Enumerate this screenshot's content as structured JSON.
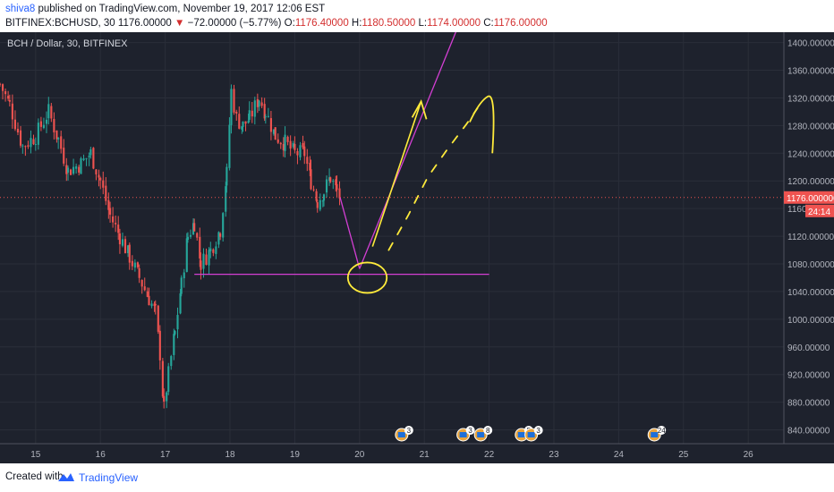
{
  "header": {
    "author": "shiva8",
    "published": "published on TradingView.com, November 19, 2017 12:06 EST",
    "symbol": "BITFINEX:BCHUSD, 30",
    "last": "1176.00000",
    "arrow": "▼",
    "change": "−72.00000 (−5.77%)",
    "o_label": "O:",
    "o_val": "1176.40000",
    "h_label": "H:",
    "h_val": "1180.50000",
    "l_label": "L:",
    "l_val": "1174.00000",
    "c_label": "C:",
    "c_val": "1176.00000"
  },
  "footer": {
    "created_with": "Created with",
    "brand": "TradingView"
  },
  "chart_data": {
    "type": "candlestick",
    "title": "BCH / Dollar, 30, BITFINEX",
    "x_ticks": [
      "15",
      "16",
      "17",
      "18",
      "19",
      "20",
      "21",
      "22",
      "23",
      "24",
      "25",
      "26"
    ],
    "y_ticks": [
      840,
      880,
      920,
      960,
      1000,
      1040,
      1080,
      1120,
      1160,
      1200,
      1240,
      1280,
      1320,
      1360,
      1400
    ],
    "ylim": [
      820,
      1415
    ],
    "xlim": [
      14.45,
      26.55
    ],
    "price_labels": [
      "840.00000",
      "880.00000",
      "920.00000",
      "960.00000",
      "1000.00000",
      "1040.00000",
      "1080.00000",
      "1120.00000",
      "1160",
      "1200.00000",
      "1240.00000",
      "1280.00000",
      "1320.00000",
      "1360.00000",
      "1400.00000"
    ],
    "last_price": 1176,
    "last_price_label": "1176.000000",
    "countdown": "24:14",
    "key_path": [
      [
        14.45,
        1340
      ],
      [
        14.6,
        1310
      ],
      [
        14.8,
        1250
      ],
      [
        15.0,
        1265
      ],
      [
        15.2,
        1300
      ],
      [
        15.35,
        1260
      ],
      [
        15.5,
        1215
      ],
      [
        15.7,
        1225
      ],
      [
        15.85,
        1240
      ],
      [
        16.0,
        1200
      ],
      [
        16.15,
        1150
      ],
      [
        16.3,
        1120
      ],
      [
        16.45,
        1090
      ],
      [
        16.6,
        1060
      ],
      [
        16.75,
        1030
      ],
      [
        16.85,
        1010
      ],
      [
        16.92,
        950
      ],
      [
        16.98,
        870
      ],
      [
        17.05,
        920
      ],
      [
        17.15,
        980
      ],
      [
        17.25,
        1050
      ],
      [
        17.35,
        1120
      ],
      [
        17.45,
        1140
      ],
      [
        17.55,
        1080
      ],
      [
        17.7,
        1100
      ],
      [
        17.85,
        1130
      ],
      [
        17.95,
        1210
      ],
      [
        18.02,
        1330
      ],
      [
        18.1,
        1290
      ],
      [
        18.2,
        1280
      ],
      [
        18.3,
        1290
      ],
      [
        18.45,
        1320
      ],
      [
        18.55,
        1300
      ],
      [
        18.7,
        1265
      ],
      [
        18.85,
        1255
      ],
      [
        19.0,
        1240
      ],
      [
        19.15,
        1240
      ],
      [
        19.25,
        1200
      ],
      [
        19.35,
        1170
      ],
      [
        19.45,
        1185
      ],
      [
        19.55,
        1205
      ],
      [
        19.65,
        1185
      ],
      [
        19.7,
        1176
      ]
    ],
    "annotations": {
      "magenta_lines": [
        {
          "from": [
            19.7,
            1176
          ],
          "to": [
            20.0,
            1073
          ]
        },
        {
          "from": [
            20.0,
            1073
          ],
          "to": [
            21.55,
            1430
          ]
        },
        {
          "from": [
            17.45,
            1065
          ],
          "to": [
            22.0,
            1065
          ]
        }
      ],
      "yellow_arrow": {
        "from": [
          20.2,
          1105
        ],
        "to": [
          20.95,
          1315
        ]
      },
      "yellow_dashes": [
        [
          20.45,
          1100
        ],
        [
          20.75,
          1150
        ],
        [
          21.05,
          1205
        ],
        [
          21.35,
          1245
        ],
        [
          21.65,
          1282
        ],
        [
          21.82,
          1305
        ]
      ],
      "yellow_hook": [
        [
          21.7,
          1285
        ],
        [
          21.85,
          1315
        ],
        [
          21.98,
          1322
        ],
        [
          22.05,
          1240
        ]
      ],
      "yellow_ellipse": {
        "center": [
          20.12,
          1060
        ],
        "rx_days": 0.3,
        "ry_price": 22
      }
    },
    "event_markers": [
      {
        "x": 20.65,
        "label": "3"
      },
      {
        "x": 21.6,
        "label": "3"
      },
      {
        "x": 21.87,
        "label": "8"
      },
      {
        "x": 22.5,
        "label": "5"
      },
      {
        "x": 22.65,
        "label": "3"
      },
      {
        "x": 24.55,
        "label": "24"
      }
    ],
    "colors": {
      "background": "#1e222d",
      "grid": "#2a2e39",
      "up": "#26a69a",
      "down": "#ef5350",
      "axis_text": "#b2b5be",
      "magenta": "#d33fd3",
      "yellow": "#ffeb3b",
      "price_line": "#ef5350"
    }
  }
}
